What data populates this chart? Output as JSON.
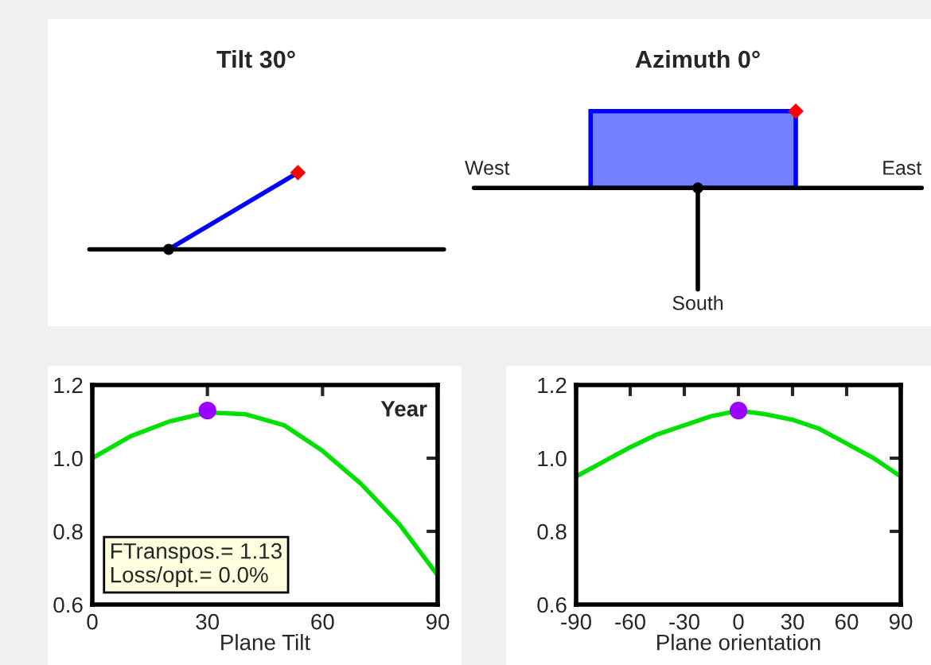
{
  "chart_data": [
    {
      "type": "other",
      "title": "Tilt 30°"
    },
    {
      "type": "other",
      "title": "Azimuth 0°",
      "annotations": [
        "West",
        "East",
        "South"
      ]
    },
    {
      "type": "line",
      "xlabel": "Plane Tilt",
      "xlim": [
        0,
        90
      ],
      "xticks": [
        0,
        30,
        60,
        90
      ],
      "ylim": [
        0.6,
        1.2
      ],
      "yticks": [
        {
          "value": 0.6,
          "label": "0.6"
        },
        {
          "value": 0.8,
          "label": "0.8"
        },
        {
          "value": 1.0,
          "label": "1.0"
        },
        {
          "value": 1.2,
          "label": "1.2"
        }
      ],
      "annotations": [
        "Year",
        "FTranspos.= 1.13\nLoss/opt.= 0.0%"
      ],
      "series": [
        {
          "type": "line",
          "color": "#00e000",
          "x": [
            0,
            10,
            20,
            30,
            40,
            50,
            60,
            70,
            80,
            90
          ],
          "values": [
            1.0,
            1.06,
            1.1,
            1.125,
            1.12,
            1.09,
            1.02,
            0.93,
            0.82,
            0.68
          ]
        },
        {
          "type": "scatter",
          "color": "#9900ff",
          "marker": "circle",
          "x": [
            30
          ],
          "values": [
            1.13
          ]
        }
      ]
    },
    {
      "type": "line",
      "xlabel": "Plane orientation",
      "xlim": [
        -90,
        90
      ],
      "xticks": [
        -90,
        -60,
        -30,
        0,
        30,
        60,
        90
      ],
      "ylim": [
        0.6,
        1.2
      ],
      "yticks": [
        {
          "value": 0.6,
          "label": "0.6"
        },
        {
          "value": 0.8,
          "label": "0.8"
        },
        {
          "value": 1.0,
          "label": "1.0"
        },
        {
          "value": 1.2,
          "label": "1.2"
        }
      ],
      "series": [
        {
          "type": "line",
          "color": "#00e000",
          "x": [
            -90,
            -75,
            -60,
            -45,
            -30,
            -15,
            0,
            15,
            30,
            45,
            60,
            75,
            90
          ],
          "values": [
            0.95,
            0.99,
            1.03,
            1.065,
            1.09,
            1.115,
            1.13,
            1.12,
            1.105,
            1.08,
            1.04,
            1.0,
            0.95
          ]
        },
        {
          "type": "scatter",
          "color": "#9900ff",
          "marker": "circle",
          "x": [
            0
          ],
          "values": [
            1.13
          ]
        }
      ]
    }
  ]
}
